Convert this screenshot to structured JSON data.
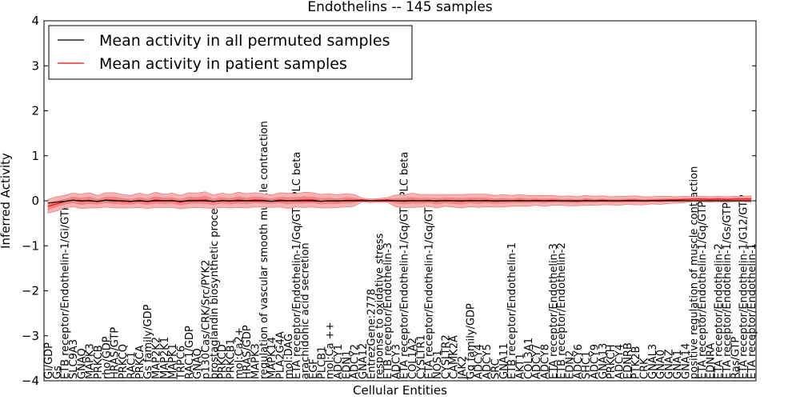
{
  "chart_data": {
    "type": "line",
    "title": "Endothelins -- 145 samples",
    "xlabel": "Cellular Entities",
    "ylabel": "Inferred Activity",
    "ylim": [
      -4,
      4
    ],
    "yticks": [
      "4",
      "3",
      "2",
      "1",
      "0",
      "−1",
      "−2",
      "−3",
      "−4"
    ],
    "grid": false,
    "legend_position": "top-left",
    "colors": {
      "permuted": "#000000",
      "patient": "#ff0000",
      "band_outer": "#f6b3b3",
      "band_inner": "#ef8585"
    },
    "categories": [
      "Gi/GDP",
      "Gs",
      "ETB receptor/Endothelin-1/Gi/GTP",
      "SLC9A3",
      "GNAQ",
      "MAPK3",
      "PRKCB",
      "rho/GDP",
      "HRAS/GTP",
      "PRKCQ",
      "RAC1",
      "PRKCA",
      "Gs family/GDP",
      "MAP2K2",
      "MAP2K1",
      "MAPK1",
      "TRPC6",
      "RAC1/GDP",
      "GNAQ",
      "p130Cas/CRK/Src/PYK2",
      "prostaglandin biosynthetic process",
      "PRKCD",
      "PRKCB1",
      "mol:Ca2+",
      "HRAS/GDP",
      "MAPK3",
      "regulation of vascular smooth muscle contraction",
      "MAPK14",
      "PLA2G4A",
      "mol:DAG",
      "ETA receptor/Endothelin-1/Gq/GTP/PLC beta",
      "arachidonic acid secretion",
      "EGF",
      "PLCB1",
      "mol:Ca ++",
      "ADCY1",
      "EDN1",
      "ADCY2",
      "GNA12",
      "EntrezGene:2778",
      "response to oxidative stress",
      "ETB receptor/Endothelin-3",
      "ADCY3",
      "ETA receptor/Endothelin-1/Gq/GTP/PLC beta",
      "COL1A2",
      "CYSLTR1",
      "ETA receptor/Endothelin-1/Gq/GTP",
      "NOS1",
      "CYSLTR2",
      "CAMK2A",
      "JAK2",
      "Gq family/GDP",
      "ADCY4",
      "ADCY5",
      "SRC",
      "GNA11",
      "ETB receptor/Endothelin-1",
      "AKT1",
      "COL3A1",
      "ADCY7",
      "ADCY8",
      "ETA receptor/Endothelin-3",
      "ETB receptor/Endothelin-2",
      "EDN2",
      "ADCY6",
      "SHC1",
      "ADCY9",
      "GNA13",
      "PRKCH",
      "ADCY4",
      "EDNRB",
      "PTK2B",
      "CRK",
      "GNAL3",
      "GNA0",
      "GNAZ",
      "GNA1",
      "GNA14",
      "positive regulation of muscle contraction",
      "ETA receptor/Endothelin-1/Gq/GTP",
      "EDNRA",
      "ETA receptor/Endothelin-2",
      "ETA receptor/Endothelin-1/Gs/GTP",
      "Ras/GTP",
      "ETA receptor/Endothelin-1/G12/GTP",
      "ETA receptor/Endothelin-1"
    ],
    "series": [
      {
        "name": "Mean activity in all permuted samples",
        "values": [
          -0.05,
          -0.03,
          -0.01,
          0.01,
          0,
          0,
          -0.01,
          0.01,
          0,
          0,
          -0.01,
          0,
          -0.01,
          0,
          0,
          0,
          -0.01,
          0,
          0,
          0,
          -0.01,
          0,
          0,
          0,
          0,
          0,
          0,
          -0.01,
          0,
          0,
          0,
          0,
          0,
          -0.01,
          0,
          0,
          0,
          0,
          0,
          0,
          0,
          0,
          0,
          0,
          0,
          0,
          0,
          0,
          0,
          0,
          0,
          0,
          0,
          0,
          0,
          0,
          0,
          0,
          0,
          0,
          0,
          0,
          0,
          0,
          0,
          0,
          0,
          0,
          0,
          0,
          0,
          0,
          0,
          0,
          0,
          0,
          0,
          0,
          0,
          0,
          0,
          0,
          0,
          0,
          0,
          0
        ]
      },
      {
        "name": "Mean activity in patient samples",
        "values": [
          -0.12,
          -0.07,
          -0.02,
          0.02,
          -0.01,
          0.01,
          -0.02,
          0.02,
          0.01,
          -0.01,
          -0.02,
          0.01,
          -0.02,
          0.02,
          0,
          0.01,
          -0.03,
          0.01,
          0.01,
          0.02,
          -0.02,
          0.01,
          -0.01,
          0.02,
          0,
          0.02,
          0.01,
          -0.01,
          0.02,
          0,
          0.01,
          0.02,
          0.02,
          -0.01,
          0,
          -0.01,
          0.01,
          0.01,
          0.02,
          0,
          0.01,
          0.02,
          0,
          -0.01,
          0.01,
          0,
          0.01,
          -0.01,
          0.01,
          0,
          -0.01,
          0.01,
          0,
          0.01,
          -0.01,
          0,
          0,
          0.01,
          0,
          0.01,
          0,
          0.01,
          0,
          0,
          -0.01,
          0.01,
          0,
          0.01,
          0,
          0,
          0.01,
          0.01,
          0,
          0.01,
          0.01,
          0.02,
          0.02,
          0.03,
          0.04,
          0.04,
          0.03,
          0.04,
          0.03,
          0.04,
          0.04,
          0.04
        ]
      }
    ],
    "band_outer_halfwidth": [
      0.15,
      0.16,
      0.14,
      0.15,
      0.16,
      0.17,
      0.14,
      0.16,
      0.17,
      0.15,
      0.14,
      0.16,
      0.15,
      0.17,
      0.15,
      0.16,
      0.15,
      0.17,
      0.16,
      0.18,
      0.15,
      0.16,
      0.15,
      0.17,
      0.16,
      0.16,
      0.15,
      0.14,
      0.16,
      0.17,
      0.15,
      0.17,
      0.16,
      0.15,
      0.16,
      0.14,
      0.15,
      0.13,
      0.04,
      0.04,
      0.04,
      0.05,
      0.13,
      0.14,
      0.16,
      0.14,
      0.13,
      0.15,
      0.13,
      0.14,
      0.15,
      0.14,
      0.15,
      0.14,
      0.13,
      0.14,
      0.12,
      0.13,
      0.12,
      0.11,
      0.12,
      0.11,
      0.1,
      0.11,
      0.1,
      0.11,
      0.1,
      0.1,
      0.09,
      0.1,
      0.09,
      0.1,
      0.09,
      0.08,
      0.09,
      0.08,
      0.07,
      0.07,
      0.05,
      0.06,
      0.06,
      0.06,
      0.06,
      0.06,
      0.06,
      0.07
    ],
    "band_inner_halfwidth": [
      0.08,
      0.07,
      0.06,
      0.07,
      0.08,
      0.08,
      0.06,
      0.07,
      0.08,
      0.07,
      0.06,
      0.07,
      0.07,
      0.08,
      0.07,
      0.07,
      0.07,
      0.08,
      0.07,
      0.09,
      0.07,
      0.07,
      0.07,
      0.08,
      0.07,
      0.07,
      0.07,
      0.06,
      0.07,
      0.08,
      0.07,
      0.08,
      0.07,
      0.07,
      0.07,
      0.06,
      0.07,
      0.06,
      0.02,
      0.02,
      0.02,
      0.02,
      0.06,
      0.07,
      0.07,
      0.06,
      0.06,
      0.07,
      0.06,
      0.07,
      0.07,
      0.06,
      0.07,
      0.06,
      0.06,
      0.06,
      0.05,
      0.06,
      0.05,
      0.05,
      0.05,
      0.05,
      0.04,
      0.05,
      0.04,
      0.05,
      0.04,
      0.04,
      0.04,
      0.04,
      0.04,
      0.04,
      0.04,
      0.03,
      0.04,
      0.03,
      0.03,
      0.03,
      0.02,
      0.03,
      0.03,
      0.03,
      0.03,
      0.03,
      0.03,
      0.03
    ]
  }
}
